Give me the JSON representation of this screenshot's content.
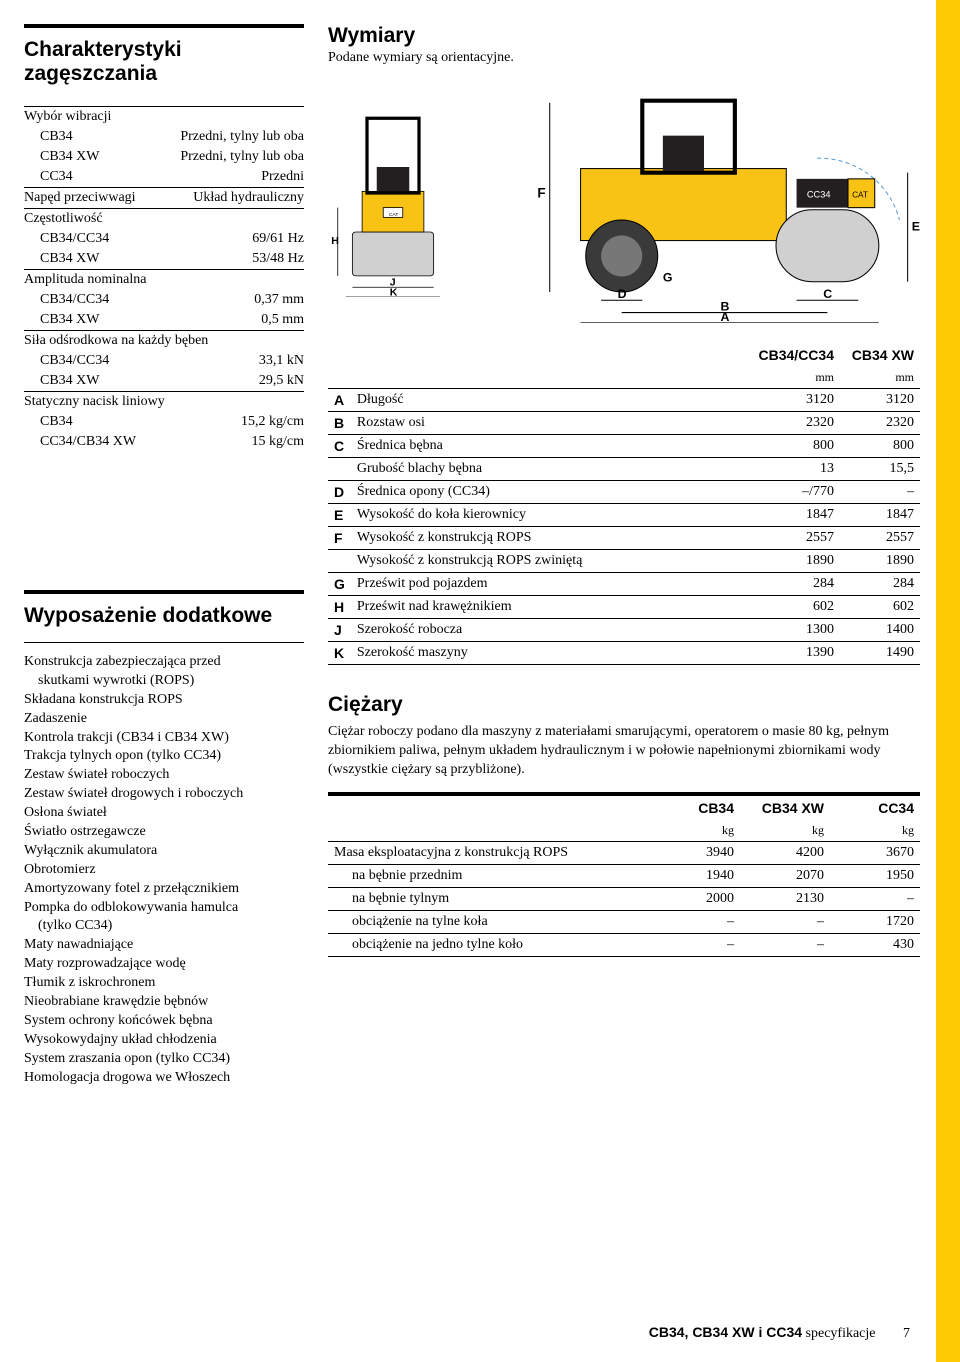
{
  "colors": {
    "yellow": "#ffcb05",
    "machine_yellow": "#f9c316",
    "seat_black": "#231f20",
    "tire_gray": "#3a3a3a",
    "outline": "#000000"
  },
  "left": {
    "section1": {
      "title": "Charakterystyki zagęszczania",
      "groups": [
        {
          "header": "Wybór wibracji",
          "rows": [
            {
              "label": "CB34",
              "value": "Przedni, tylny lub oba"
            },
            {
              "label": "CB34 XW",
              "value": "Przedni, tylny lub oba"
            },
            {
              "label": "CC34",
              "value": "Przedni"
            }
          ]
        },
        {
          "header_row": {
            "label": "Napęd przeciwwagi",
            "value": "Układ hydrauliczny"
          }
        },
        {
          "header": "Częstotliwość",
          "rows": [
            {
              "label": "CB34/CC34",
              "value": "69/61 Hz"
            },
            {
              "label": "CB34 XW",
              "value": "53/48 Hz"
            }
          ]
        },
        {
          "header": "Amplituda nominalna",
          "rows": [
            {
              "label": "CB34/CC34",
              "value": "0,37 mm"
            },
            {
              "label": "CB34 XW",
              "value": "0,5 mm"
            }
          ]
        },
        {
          "header": "Siła odśrodkowa na każdy bęben",
          "rows": [
            {
              "label": "CB34/CC34",
              "value": "33,1 kN"
            },
            {
              "label": "CB34 XW",
              "value": "29,5 kN"
            }
          ]
        },
        {
          "header": "Statyczny nacisk liniowy",
          "rows": [
            {
              "label": "CB34",
              "value": "15,2 kg/cm"
            },
            {
              "label": "CC34/CB34 XW",
              "value": "15 kg/cm"
            }
          ]
        }
      ]
    },
    "section2": {
      "title": "Wyposażenie dodatkowe",
      "items": [
        "Konstrukcja zabezpieczająca przed",
        "  skutkami wywrotki (ROPS)",
        "Składana konstrukcja ROPS",
        "Zadaszenie",
        "Kontrola trakcji (CB34 i CB34 XW)",
        "Trakcja tylnych opon (tylko CC34)",
        "Zestaw świateł roboczych",
        "Zestaw świateł drogowych i roboczych",
        "Osłona świateł",
        "Światło ostrzegawcze",
        "Wyłącznik akumulatora",
        "Obrotomierz",
        "Amortyzowany fotel z przełącznikiem",
        "Pompka do odblokowywania hamulca",
        "  (tylko CC34)",
        "Maty nawadniające",
        "Maty rozprowadzające wodę",
        "Tłumik z iskrochronem",
        "Nieobrabiane krawędzie bębnów",
        "System ochrony końcówek bębna",
        "Wysokowydajny układ chłodzenia",
        "System zraszania opon (tylko CC34)",
        "Homologacja drogowa we Włoszech"
      ]
    }
  },
  "right": {
    "dims_title": "Wymiary",
    "dims_sub": "Podane wymiary są orientacyjne.",
    "dim_labels": {
      "H": "H",
      "J": "J",
      "K": "K",
      "F": "F",
      "G": "G",
      "D": "D",
      "B": "B",
      "A": "A",
      "C": "C",
      "E": "E"
    },
    "dims_table": {
      "cols": [
        "CB34/CC34",
        "CB34 XW"
      ],
      "unit": "mm",
      "rows": [
        {
          "key": "A",
          "desc": "Długość",
          "v1": "3120",
          "v2": "3120"
        },
        {
          "key": "B",
          "desc": "Rozstaw osi",
          "v1": "2320",
          "v2": "2320"
        },
        {
          "key": "C",
          "desc": "Średnica bębna",
          "v1": "800",
          "v2": "800"
        },
        {
          "key": "",
          "desc": "Grubość blachy bębna",
          "v1": "13",
          "v2": "15,5"
        },
        {
          "key": "D",
          "desc": "Średnica opony (CC34)",
          "v1": "–/770",
          "v2": "–"
        },
        {
          "key": "E",
          "desc": "Wysokość do koła kierownicy",
          "v1": "1847",
          "v2": "1847"
        },
        {
          "key": "F",
          "desc": "Wysokość z konstrukcją ROPS",
          "v1": "2557",
          "v2": "2557"
        },
        {
          "key": "",
          "desc": "Wysokość z konstrukcją ROPS zwiniętą",
          "v1": "1890",
          "v2": "1890"
        },
        {
          "key": "G",
          "desc": "Prześwit pod pojazdem",
          "v1": "284",
          "v2": "284"
        },
        {
          "key": "H",
          "desc": "Prześwit nad krawężnikiem",
          "v1": "602",
          "v2": "602"
        },
        {
          "key": "J",
          "desc": "Szerokość robocza",
          "v1": "1300",
          "v2": "1400"
        },
        {
          "key": "K",
          "desc": "Szerokość maszyny",
          "v1": "1390",
          "v2": "1490"
        }
      ]
    },
    "weights_title": "Ciężary",
    "weights_intro": "Ciężar roboczy podano dla maszyny z materiałami smarującymi, operatorem o masie 80 kg, pełnym zbiornikiem paliwa, pełnym układem hydraulicznym i w połowie napełnionymi zbiornikami wody (wszystkie ciężary są przybliżone).",
    "weights_table": {
      "cols": [
        "CB34",
        "CB34 XW",
        "CC34"
      ],
      "unit": "kg",
      "rows": [
        {
          "desc": "Masa eksploatacyjna z konstrukcją ROPS",
          "v1": "3940",
          "v2": "4200",
          "v3": "3670"
        },
        {
          "desc": "na bębnie przednim",
          "indent": true,
          "v1": "1940",
          "v2": "2070",
          "v3": "1950"
        },
        {
          "desc": "na bębnie tylnym",
          "indent": true,
          "v1": "2000",
          "v2": "2130",
          "v3": "–"
        },
        {
          "desc": "obciążenie na tylne koła",
          "indent": true,
          "v1": "–",
          "v2": "–",
          "v3": "1720"
        },
        {
          "desc": "obciążenie na jedno tylne koło",
          "indent": true,
          "v1": "–",
          "v2": "–",
          "v3": "430"
        }
      ]
    }
  },
  "footer": {
    "title": "CB34, CB34 XW i CC34",
    "suffix": " specyfikacje",
    "page": "7"
  }
}
